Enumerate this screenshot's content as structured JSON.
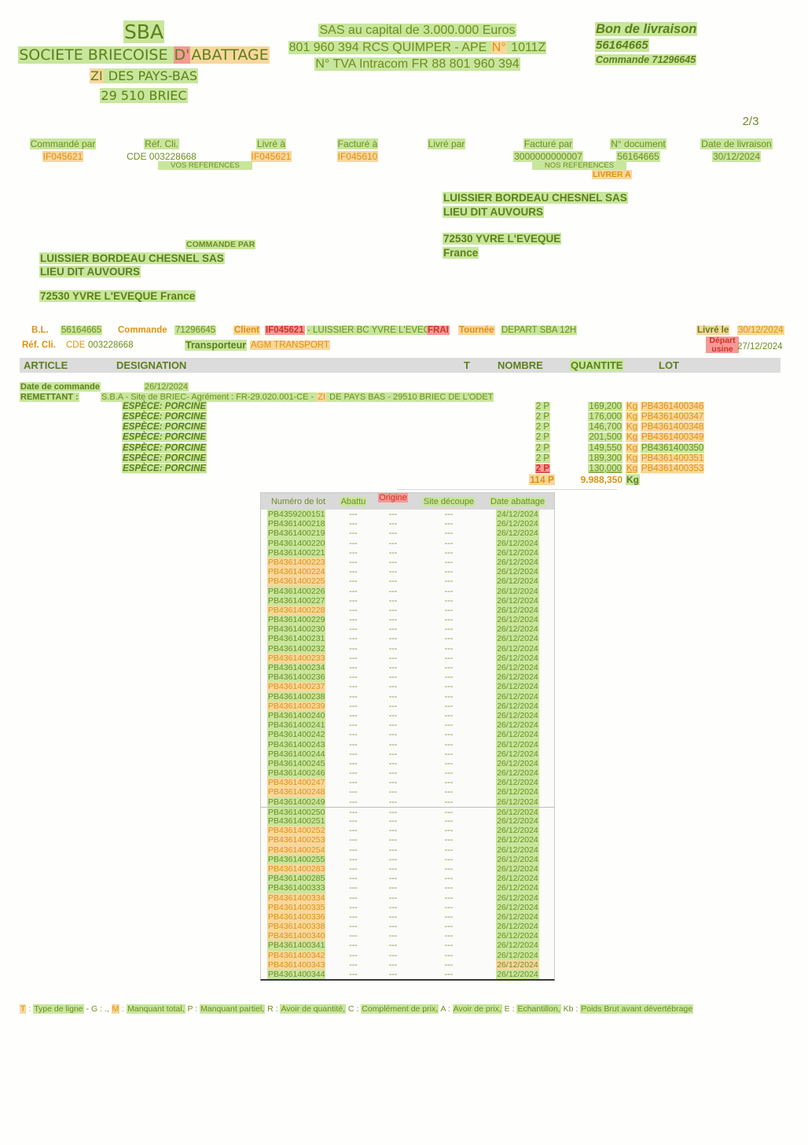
{
  "page": {
    "number": "2/3"
  },
  "header": {
    "logo": {
      "name": "SBA",
      "company_part1": "SOCIETE BRIECOISE ",
      "company_d": "D'",
      "company_part2": "ABATTAGE",
      "address_zi": "ZI",
      "address_rest": " DES PAYS-BAS",
      "city": "29 510 BRIEC"
    },
    "center": {
      "line1": "SAS au capital de 3.000.000 Euros",
      "line2_pre": "801 960 394 RCS QUIMPER - APE ",
      "line2_no": "N°",
      "line2_post": " 1011Z",
      "line3": "N° TVA Intracom FR 88 801 960 394"
    },
    "doc": {
      "title": "Bon de livraison",
      "number": "56164665",
      "commande": "Commande 71296645"
    }
  },
  "fields": {
    "items": [
      {
        "label": "Commandé par",
        "value": "IF045621",
        "value_cls": "o ohl"
      },
      {
        "label": "Réf. Cli.",
        "value": "CDE 003228668",
        "value_cls": "g"
      },
      {
        "label": "Livré à",
        "value": "IF045621",
        "value_cls": "o ohl"
      },
      {
        "label": "Facturé à",
        "value": "IF045610",
        "value_cls": "o ohl"
      },
      {
        "label": "Livré par",
        "value": "",
        "value_cls": "g"
      },
      {
        "label": "Facturé par",
        "value": "3000000000007",
        "value_cls": "g ghl"
      },
      {
        "label": "N° document",
        "value": "56164665",
        "value_cls": "g ghl"
      },
      {
        "label": "Date de livraison",
        "value": "30/12/2024",
        "value_cls": "g ghl"
      }
    ],
    "vos_references": "VOS REFERENCES",
    "nos_references": "NOS REFERENCES",
    "livrer_a": "LIVRER A"
  },
  "addresses": {
    "ship_to": {
      "name": "LUISSIER BORDEAU CHESNEL SAS",
      "line2": "LIEU DIT AUVOURS",
      "city": "72530 YVRE L'EVEQUE",
      "country": "France"
    },
    "ordered_by_label": "COMMANDE PAR",
    "ordered_by": {
      "name": "LUISSIER BORDEAU CHESNEL SAS",
      "line2": "LIEU DIT AUVOURS",
      "city": "72530 YVRE L'EVEQUE France"
    }
  },
  "bl_bar": {
    "bl_label": "B.L.",
    "bl_value": "56164665",
    "commande_label": "Commande",
    "commande_value": "71296645",
    "client_label": "Client",
    "client_code": "IF045621",
    "client_name": "- LUISSIER BC YVRE L'EVEQUE",
    "client_frai": "FRAI",
    "tournee_label": "Tournée",
    "tournee_value": "DEPART SBA 12H",
    "livre_le_label": "Livré le",
    "livre_le_value": "30/12/2024",
    "ref_cli_label": "Réf. Cli.",
    "ref_cli_cde": "CDE",
    "ref_cli_num": "003228668",
    "transporteur_label": "Transporteur",
    "transporteur_value": "AGM TRANSPORT",
    "depart_usine_line1": "Départ",
    "depart_usine_line2": "usine",
    "depart_usine_date": "27/12/2024"
  },
  "main_table": {
    "col_article": "ARTICLE",
    "col_designation": "DESIGNATION",
    "col_t": "T",
    "col_nombre": "NOMBRE",
    "col_quantite": "QUANTITE",
    "col_lot": "LOT"
  },
  "order_info": {
    "date_commande_label": "Date de commande",
    "date_commande_value": "26/12/2024",
    "remettant_label": "REMETTANT :",
    "remettant_pre": "S.B.A - Site de BRIEC- Agrément : FR-29.020.001-CE - ",
    "remettant_zi": "ZI",
    "remettant_post": " DE PAYS BAS - 29510 BRIEC DE L'ODET"
  },
  "species": {
    "rows": [
      {
        "label": "ESPÈCE: PORCINE",
        "count": "2 P",
        "qty": "169,200",
        "unit": "Kg",
        "lot": "PB4361400346",
        "lot_style": "orange",
        "count_style": "green",
        "underline": false
      },
      {
        "label": "ESPÈCE: PORCINE",
        "count": "2 P",
        "qty": "176,000",
        "unit": "Kg",
        "lot": "PB4361400347",
        "lot_style": "orange",
        "count_style": "green",
        "underline": false
      },
      {
        "label": "ESPÈCE: PORCINE",
        "count": "2 P",
        "qty": "146,700",
        "unit": "Kg",
        "lot": "PB4361400348",
        "lot_style": "orange",
        "count_style": "green",
        "underline": false
      },
      {
        "label": "ESPÈCE: PORCINE",
        "count": "2 P",
        "qty": "201,500",
        "unit": "Kg",
        "lot": "PB4361400349",
        "lot_style": "orange",
        "count_style": "green",
        "underline": false
      },
      {
        "label": "ESPÈCE: PORCINE",
        "count": "2 P",
        "qty": "149,550",
        "unit": "Kg",
        "lot": "PB4361400350",
        "lot_style": "green",
        "count_style": "green",
        "underline": false
      },
      {
        "label": "ESPÈCE: PORCINE",
        "count": "2 P",
        "qty": "189,300",
        "unit": "Kg",
        "lot": "PB4361400351",
        "lot_style": "orange",
        "count_style": "green",
        "underline": false
      },
      {
        "label": "ESPÈCE: PORCINE",
        "count": "2 P",
        "qty": "130,000",
        "unit": "Kg",
        "lot": "PB4361400353",
        "lot_style": "orange",
        "count_style": "red",
        "underline": true
      }
    ],
    "total": {
      "count": "114 P",
      "qty": "9.988,350",
      "unit": "Kg"
    }
  },
  "lot_table": {
    "headers": [
      {
        "label": "Numéro de lot",
        "style": "plain"
      },
      {
        "label": "Abattu",
        "style": "green"
      },
      {
        "label": "Origine",
        "style": "red"
      },
      {
        "label": "Site découpe",
        "style": "green"
      },
      {
        "label": "Date abattage",
        "style": "green"
      }
    ],
    "dash": "---",
    "separator_before_index": 31,
    "rows": [
      {
        "lot": "PB4359200151",
        "style": "g",
        "date": "24/12/2024",
        "date_style": "g"
      },
      {
        "lot": "PB4361400218",
        "style": "g",
        "date": "26/12/2024",
        "date_style": "g"
      },
      {
        "lot": "PB4361400219",
        "style": "g",
        "date": "26/12/2024",
        "date_style": "g"
      },
      {
        "lot": "PB4361400220",
        "style": "g",
        "date": "26/12/2024",
        "date_style": "g"
      },
      {
        "lot": "PB4361400221",
        "style": "g",
        "date": "26/12/2024",
        "date_style": "g"
      },
      {
        "lot": "PB4361400223",
        "style": "o",
        "date": "26/12/2024",
        "date_style": "g"
      },
      {
        "lot": "PB4361400224",
        "style": "o",
        "date": "26/12/2024",
        "date_style": "g"
      },
      {
        "lot": "PB4361400225",
        "style": "o",
        "date": "26/12/2024",
        "date_style": "g"
      },
      {
        "lot": "PB4361400226",
        "style": "g",
        "date": "26/12/2024",
        "date_style": "g"
      },
      {
        "lot": "PB4361400227",
        "style": "g",
        "date": "26/12/2024",
        "date_style": "g"
      },
      {
        "lot": "PB4361400228",
        "style": "o",
        "date": "26/12/2024",
        "date_style": "g"
      },
      {
        "lot": "PB4361400229",
        "style": "g",
        "date": "26/12/2024",
        "date_style": "g"
      },
      {
        "lot": "PB4361400230",
        "style": "g",
        "date": "26/12/2024",
        "date_style": "g"
      },
      {
        "lot": "PB4361400231",
        "style": "g",
        "date": "26/12/2024",
        "date_style": "g"
      },
      {
        "lot": "PB4361400232",
        "style": "g",
        "date": "26/12/2024",
        "date_style": "g"
      },
      {
        "lot": "PB4361400233",
        "style": "o",
        "date": "26/12/2024",
        "date_style": "g"
      },
      {
        "lot": "PB4361400234",
        "style": "g",
        "date": "26/12/2024",
        "date_style": "g"
      },
      {
        "lot": "PB4361400236",
        "style": "g",
        "date": "26/12/2024",
        "date_style": "g"
      },
      {
        "lot": "PB4361400237",
        "style": "o",
        "date": "26/12/2024",
        "date_style": "g"
      },
      {
        "lot": "PB4361400238",
        "style": "g",
        "date": "26/12/2024",
        "date_style": "g"
      },
      {
        "lot": "PB4361400239",
        "style": "o",
        "date": "26/12/2024",
        "date_style": "g"
      },
      {
        "lot": "PB4361400240",
        "style": "g",
        "date": "26/12/2024",
        "date_style": "g"
      },
      {
        "lot": "PB4361400241",
        "style": "g",
        "date": "26/12/2024",
        "date_style": "g"
      },
      {
        "lot": "PB4361400242",
        "style": "g",
        "date": "26/12/2024",
        "date_style": "g"
      },
      {
        "lot": "PB4361400243",
        "style": "g",
        "date": "26/12/2024",
        "date_style": "g"
      },
      {
        "lot": "PB4361400244",
        "style": "g",
        "date": "26/12/2024",
        "date_style": "g"
      },
      {
        "lot": "PB4361400245",
        "style": "g",
        "date": "26/12/2024",
        "date_style": "g"
      },
      {
        "lot": "PB4361400246",
        "style": "g",
        "date": "26/12/2024",
        "date_style": "g"
      },
      {
        "lot": "PB4361400247",
        "style": "o",
        "date": "26/12/2024",
        "date_style": "g"
      },
      {
        "lot": "PB4361400248",
        "style": "o",
        "date": "26/12/2024",
        "date_style": "g"
      },
      {
        "lot": "PB4361400249",
        "style": "g",
        "date": "26/12/2024",
        "date_style": "g"
      },
      {
        "lot": "PB4361400250",
        "style": "g",
        "date": "26/12/2024",
        "date_style": "g"
      },
      {
        "lot": "PB4361400251",
        "style": "g",
        "date": "26/12/2024",
        "date_style": "g"
      },
      {
        "lot": "PB4361400252",
        "style": "o",
        "date": "26/12/2024",
        "date_style": "g"
      },
      {
        "lot": "PB4361400253",
        "style": "o",
        "date": "26/12/2024",
        "date_style": "g"
      },
      {
        "lot": "PB4361400254",
        "style": "o",
        "date": "26/12/2024",
        "date_style": "g"
      },
      {
        "lot": "PB4361400255",
        "style": "g",
        "date": "26/12/2024",
        "date_style": "g"
      },
      {
        "lot": "PB4361400283",
        "style": "o",
        "date": "26/12/2024",
        "date_style": "g"
      },
      {
        "lot": "PB4361400285",
        "style": "g",
        "date": "26/12/2024",
        "date_style": "g"
      },
      {
        "lot": "PB4361400333",
        "style": "g",
        "date": "26/12/2024",
        "date_style": "g"
      },
      {
        "lot": "PB4361400334",
        "style": "o",
        "date": "26/12/2024",
        "date_style": "g"
      },
      {
        "lot": "PB4361400335",
        "style": "o",
        "date": "26/12/2024",
        "date_style": "g"
      },
      {
        "lot": "PB4361400336",
        "style": "o",
        "date": "26/12/2024",
        "date_style": "g"
      },
      {
        "lot": "PB4361400338",
        "style": "o",
        "date": "26/12/2024",
        "date_style": "g"
      },
      {
        "lot": "PB4361400340",
        "style": "o",
        "date": "26/12/2024",
        "date_style": "g"
      },
      {
        "lot": "PB4361400341",
        "style": "g",
        "date": "26/12/2024",
        "date_style": "g"
      },
      {
        "lot": "PB4361400342",
        "style": "o",
        "date": "26/12/2024",
        "date_style": "g"
      },
      {
        "lot": "PB4361400343",
        "style": "o",
        "date": "26/12/2024",
        "date_style": "o"
      },
      {
        "lot": "PB4361400344",
        "style": "g",
        "date": "26/12/2024",
        "date_style": "g"
      }
    ]
  },
  "legend": {
    "segments": [
      {
        "text": "T",
        "cls": "o ohl"
      },
      {
        "text": " : ",
        "cls": "o"
      },
      {
        "text": "Type de ligne",
        "cls": "g ghl"
      },
      {
        "text": " - G : ., ",
        "cls": "g"
      },
      {
        "text": "M",
        "cls": "o ohl"
      },
      {
        "text": " : ",
        "cls": "o"
      },
      {
        "text": "Manquant total,",
        "cls": "g ghl"
      },
      {
        "text": " P : ",
        "cls": "g"
      },
      {
        "text": "Manquant partiel,",
        "cls": "g ghl"
      },
      {
        "text": " R : ",
        "cls": "g"
      },
      {
        "text": "Avoir de quantité,",
        "cls": "g ghl"
      },
      {
        "text": " C : ",
        "cls": "g"
      },
      {
        "text": "Complément de prix,",
        "cls": "g ghl"
      },
      {
        "text": " A : ",
        "cls": "g"
      },
      {
        "text": "Avoir de prix,",
        "cls": "g ghl"
      },
      {
        "text": " E : ",
        "cls": "g"
      },
      {
        "text": "Echantillon,",
        "cls": "g ghl"
      },
      {
        "text": " Kb : ",
        "cls": "g"
      },
      {
        "text": "Poids Brut avant dévertébrage",
        "cls": "g ghl"
      }
    ]
  },
  "colors": {
    "olive_text": "#6f8c21",
    "orange_text": "#df9212",
    "red_text": "#d1322a",
    "green_highlight": "#c8e69c",
    "orange_highlight": "#f8d79d",
    "pink_highlight": "#f49a95",
    "band_gray": "#dcdcdc"
  }
}
